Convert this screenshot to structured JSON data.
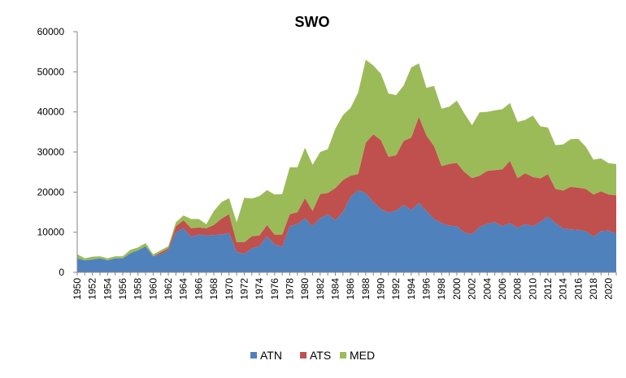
{
  "chart_data": {
    "type": "area",
    "stacked": true,
    "title": "SWO",
    "xlabel": "",
    "ylabel": "",
    "ylim": [
      0,
      60000
    ],
    "yticks": [
      0,
      10000,
      20000,
      30000,
      40000,
      50000,
      60000
    ],
    "xticks": [
      1950,
      1952,
      1954,
      1956,
      1958,
      1960,
      1962,
      1964,
      1966,
      1968,
      1970,
      1972,
      1974,
      1976,
      1978,
      1980,
      1982,
      1984,
      1986,
      1988,
      1990,
      1992,
      1994,
      1996,
      1998,
      2000,
      2002,
      2004,
      2006,
      2008,
      2010,
      2012,
      2014,
      2016,
      2018,
      2020
    ],
    "grid": false,
    "legend_position": "bottom",
    "x": [
      1950,
      1951,
      1952,
      1953,
      1954,
      1955,
      1956,
      1957,
      1958,
      1959,
      1960,
      1961,
      1962,
      1963,
      1964,
      1965,
      1966,
      1967,
      1968,
      1969,
      1970,
      1971,
      1972,
      1973,
      1974,
      1975,
      1976,
      1977,
      1978,
      1979,
      1980,
      1981,
      1982,
      1983,
      1984,
      1985,
      1986,
      1987,
      1988,
      1989,
      1990,
      1991,
      1992,
      1993,
      1994,
      1995,
      1996,
      1997,
      1998,
      1999,
      2000,
      2001,
      2002,
      2003,
      2004,
      2005,
      2006,
      2007,
      2008,
      2009,
      2010,
      2011,
      2012,
      2013,
      2014,
      2015,
      2016,
      2017,
      2018,
      2019,
      2020,
      2021
    ],
    "series": [
      {
        "name": "ATN",
        "color": "#4f81bd",
        "values": [
          3500,
          3000,
          3200,
          3500,
          3000,
          3500,
          3500,
          4800,
          5500,
          6500,
          4000,
          4500,
          5500,
          10000,
          11000,
          8800,
          9400,
          9200,
          9300,
          9400,
          9800,
          5100,
          4600,
          6000,
          6500,
          9000,
          7000,
          6300,
          11500,
          12000,
          13500,
          11500,
          13500,
          14500,
          13000,
          15000,
          18800,
          20500,
          19700,
          17500,
          15800,
          14900,
          15400,
          16800,
          15500,
          17300,
          15300,
          13300,
          12300,
          11600,
          11500,
          9900,
          9500,
          11300,
          12100,
          12500,
          11500,
          12300,
          11100,
          12000,
          11500,
          12600,
          13900,
          12300,
          10900,
          10700,
          10600,
          10300,
          8900,
          10300,
          10400,
          9600
        ]
      },
      {
        "name": "ATS",
        "color": "#c0504d",
        "values": [
          0,
          0,
          0,
          0,
          0,
          0,
          0,
          0,
          0,
          0,
          0,
          500,
          500,
          1500,
          2000,
          2200,
          1800,
          1800,
          2500,
          4000,
          4700,
          2400,
          2900,
          3000,
          2700,
          2800,
          2400,
          3100,
          3000,
          3000,
          5000,
          3800,
          6000,
          5300,
          8000,
          8000,
          5300,
          4000,
          12600,
          16900,
          17200,
          13900,
          13800,
          16000,
          18100,
          21500,
          18800,
          18200,
          14200,
          15400,
          15800,
          15100,
          14000,
          12800,
          13200,
          13000,
          14200,
          15500,
          12400,
          12700,
          12300,
          10800,
          10600,
          8500,
          9500,
          10600,
          10500,
          10500,
          10500,
          9900,
          9000,
          9600
        ]
      },
      {
        "name": "MED",
        "color": "#9bbb59",
        "values": [
          1000,
          500,
          700,
          500,
          500,
          500,
          500,
          800,
          700,
          800,
          500,
          500,
          500,
          1000,
          1200,
          2300,
          2100,
          1000,
          3500,
          4100,
          4000,
          5000,
          11100,
          9400,
          9800,
          8700,
          10000,
          10100,
          11700,
          11200,
          12600,
          11500,
          10500,
          10900,
          14800,
          16200,
          16900,
          20300,
          20700,
          17200,
          16500,
          15800,
          15000,
          13800,
          17500,
          13300,
          11900,
          15000,
          14300,
          14300,
          15500,
          14600,
          13200,
          15800,
          14700,
          14900,
          15000,
          14400,
          14000,
          13300,
          15300,
          13000,
          11600,
          10900,
          11500,
          11900,
          12200,
          10500,
          8700,
          8200,
          7800,
          7800
        ]
      }
    ]
  }
}
